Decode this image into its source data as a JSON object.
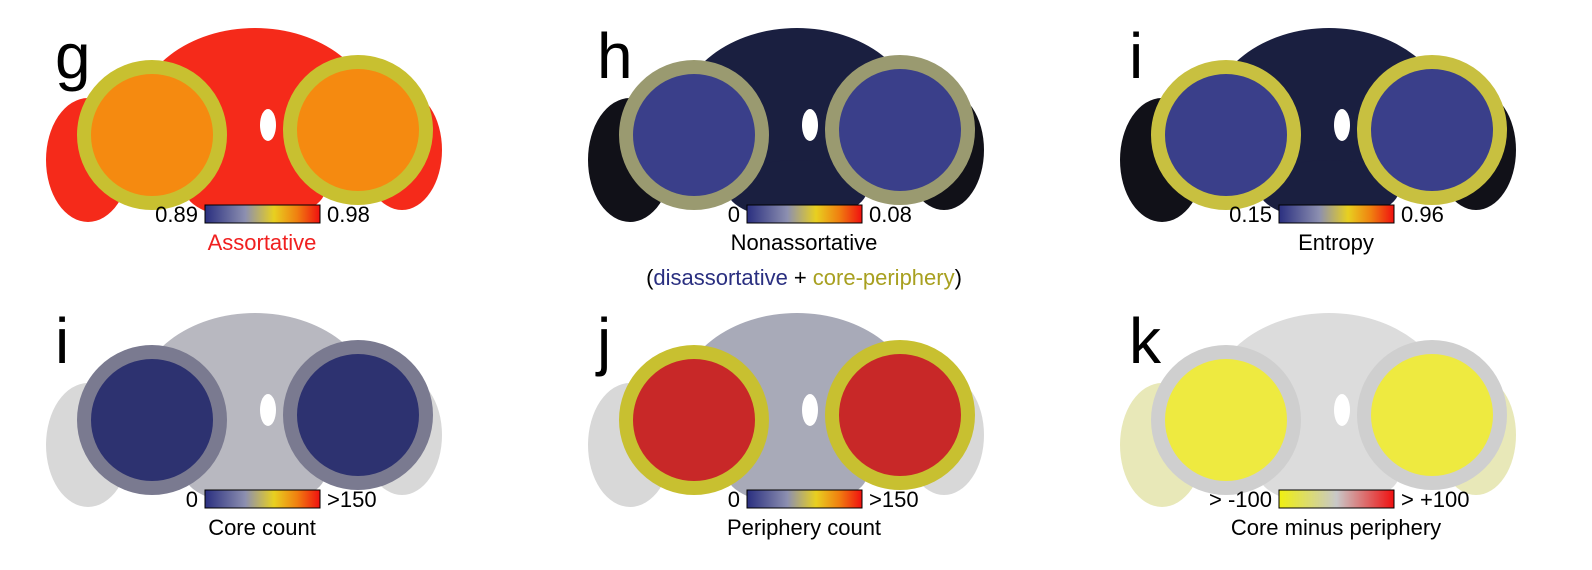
{
  "panels": [
    {
      "letter": "g",
      "min_label": "0.89",
      "max_label": "0.98",
      "caption": "Assortative"
    },
    {
      "letter": "h",
      "min_label": "0",
      "max_label": "0.08",
      "caption": "Nonassortative",
      "caption_parts": [
        "(",
        "disassortative",
        "+",
        "core-periphery",
        ")"
      ]
    },
    {
      "letter": "i",
      "min_label": "0.15",
      "max_label": "0.96",
      "caption": "Entropy"
    },
    {
      "letter": "i",
      "min_label": "0",
      "max_label": ">150",
      "caption": "Core count"
    },
    {
      "letter": "j",
      "min_label": "0",
      "max_label": ">150",
      "caption": "Periphery count"
    },
    {
      "letter": "k",
      "min_label": "> -100",
      "max_label": "> +100",
      "caption": "Core minus periphery"
    }
  ]
}
